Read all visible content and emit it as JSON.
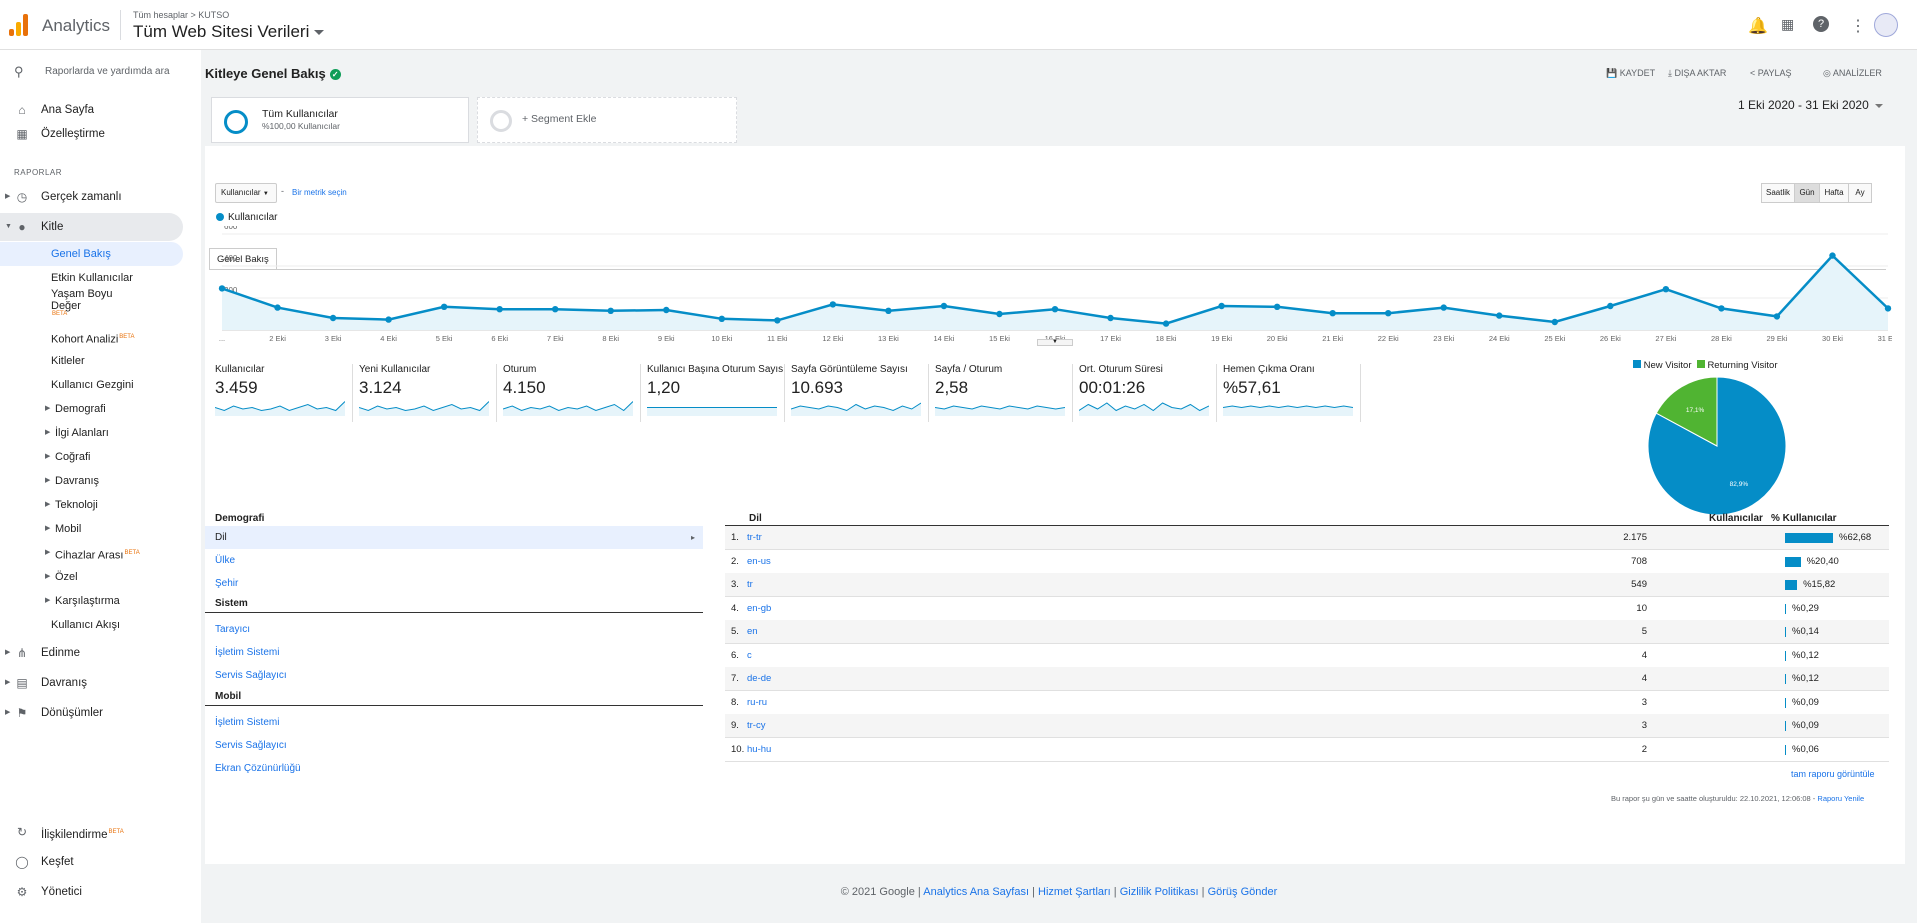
{
  "app": {
    "name": "Analytics",
    "breadcrumb": "Tüm hesaplar > KUTSO",
    "property": "Tüm Web Sitesi Verileri"
  },
  "sidebar": {
    "search_label": "Raporlarda ve yardımda ara",
    "home": "Ana Sayfa",
    "custom": "Özelleştirme",
    "reports_header": "RAPORLAR",
    "realtime": "Gerçek zamanlı",
    "audience": "Kitle",
    "audience_items": [
      "Genel Bakış",
      "Etkin Kullanıcılar",
      "Yaşam Boyu",
      "Değer",
      "Kohort Analizi",
      "Kitleler",
      "Kullanıcı Gezgini",
      "Demografi",
      "İlgi Alanları",
      "Coğrafi",
      "Davranış",
      "Teknoloji",
      "Mobil",
      "Cihazlar Arası",
      "Özel",
      "Karşılaştırma",
      "Kullanıcı Akışı"
    ],
    "beta": "BETA",
    "acquisition": "Edinme",
    "behavior": "Davranış",
    "conversions": "Dönüşümler",
    "attribution": "İlişkilendirme",
    "discover": "Keşfet",
    "admin": "Yönetici"
  },
  "header": {
    "title": "Kitleye Genel Bakış",
    "save": "KAYDET",
    "export": "DIŞA AKTAR",
    "share": "PAYLAŞ",
    "insights": "ANALİZLER"
  },
  "segments": {
    "all_name": "Tüm Kullanıcılar",
    "all_sub": "%100,00 Kullanıcılar",
    "add": "+ Segment Ekle"
  },
  "date_range": "1 Eki 2020 - 31 Eki 2020",
  "tab": "Genel Bakış",
  "controls": {
    "metric": "Kullanıcılar",
    "select_metric": "Bir metrik seçin",
    "granularity": [
      "Saatlik",
      "Gün",
      "Hafta",
      "Ay"
    ]
  },
  "chart_data": {
    "type": "line",
    "series": [
      {
        "name": "Kullanıcılar",
        "values": [
          260,
          140,
          75,
          65,
          145,
          130,
          130,
          120,
          125,
          70,
          60,
          160,
          120,
          150,
          100,
          130,
          75,
          40,
          150,
          145,
          105,
          105,
          140,
          90,
          50,
          150,
          255,
          135,
          85,
          465,
          135
        ]
      }
    ],
    "x": [
      "...",
      "2 Eki",
      "3 Eki",
      "4 Eki",
      "5 Eki",
      "6 Eki",
      "7 Eki",
      "8 Eki",
      "9 Eki",
      "10 Eki",
      "11 Eki",
      "12 Eki",
      "13 Eki",
      "14 Eki",
      "15 Eki",
      "16 Eki",
      "17 Eki",
      "18 Eki",
      "19 Eki",
      "20 Eki",
      "21 Eki",
      "22 Eki",
      "23 Eki",
      "24 Eki",
      "25 Eki",
      "26 Eki",
      "27 Eki",
      "28 Eki",
      "29 Eki",
      "30 Eki",
      "31 Eki"
    ],
    "yticks": [
      "600",
      "400",
      "200"
    ],
    "ylim": [
      0,
      600
    ],
    "color": "#058dc7"
  },
  "metrics": [
    {
      "label": "Kullanıcılar",
      "value": "3.459"
    },
    {
      "label": "Yeni Kullanıcılar",
      "value": "3.124"
    },
    {
      "label": "Oturum",
      "value": "4.150"
    },
    {
      "label": "Kullanıcı Başına Oturum Sayısı",
      "value": "1,20"
    },
    {
      "label": "Sayfa Görüntüleme Sayısı",
      "value": "10.693"
    },
    {
      "label": "Sayfa / Oturum",
      "value": "2,58"
    },
    {
      "label": "Ort. Oturum Süresi",
      "value": "00:01:26"
    },
    {
      "label": "Hemen Çıkma Oranı",
      "value": "%57,61"
    }
  ],
  "pie": {
    "legend": [
      "New Visitor",
      "Returning Visitor"
    ],
    "values": [
      82.9,
      17.1
    ],
    "labels": [
      "82,9%",
      "17,1%"
    ],
    "colors": [
      "#058dc7",
      "#50b432"
    ]
  },
  "demografi": {
    "header": "Demografi",
    "items": [
      "Dil",
      "Ülke",
      "Şehir"
    ],
    "sistem_header": "Sistem",
    "sistem": [
      "Tarayıcı",
      "İşletim Sistemi",
      "Servis Sağlayıcı"
    ],
    "mobil_header": "Mobil",
    "mobil": [
      "İşletim Sistemi",
      "Servis Sağlayıcı",
      "Ekran Çözünürlüğü"
    ]
  },
  "table": {
    "col_dil": "Dil",
    "col_users": "Kullanıcılar",
    "col_pct": "% Kullanıcılar",
    "rows": [
      {
        "n": "1.",
        "k": "tr-tr",
        "u": "2.175",
        "p": "%62,68",
        "f": 62.68
      },
      {
        "n": "2.",
        "k": "en-us",
        "u": "708",
        "p": "%20,40",
        "f": 20.4
      },
      {
        "n": "3.",
        "k": "tr",
        "u": "549",
        "p": "%15,82",
        "f": 15.82
      },
      {
        "n": "4.",
        "k": "en-gb",
        "u": "10",
        "p": "%0,29",
        "f": 0.29
      },
      {
        "n": "5.",
        "k": "en",
        "u": "5",
        "p": "%0,14",
        "f": 0.14
      },
      {
        "n": "6.",
        "k": "c",
        "u": "4",
        "p": "%0,12",
        "f": 0.12
      },
      {
        "n": "7.",
        "k": "de-de",
        "u": "4",
        "p": "%0,12",
        "f": 0.12
      },
      {
        "n": "8.",
        "k": "ru-ru",
        "u": "3",
        "p": "%0,09",
        "f": 0.09
      },
      {
        "n": "9.",
        "k": "tr-cy",
        "u": "3",
        "p": "%0,09",
        "f": 0.09
      },
      {
        "n": "10.",
        "k": "hu-hu",
        "u": "2",
        "p": "%0,06",
        "f": 0.06
      }
    ],
    "full_report": "tam raporu görüntüle",
    "created": "Bu rapor şu gün ve saatte oluşturuldu: 22.10.2021, 12:06:08 -",
    "refresh": "Raporu Yenile"
  },
  "footer": {
    "copyright": "© 2021 Google | ",
    "links": [
      "Analytics Ana Sayfası",
      "Hizmet Şartları",
      "Gizlilik Politikası",
      "Görüş Gönder"
    ],
    "sep": " | "
  }
}
